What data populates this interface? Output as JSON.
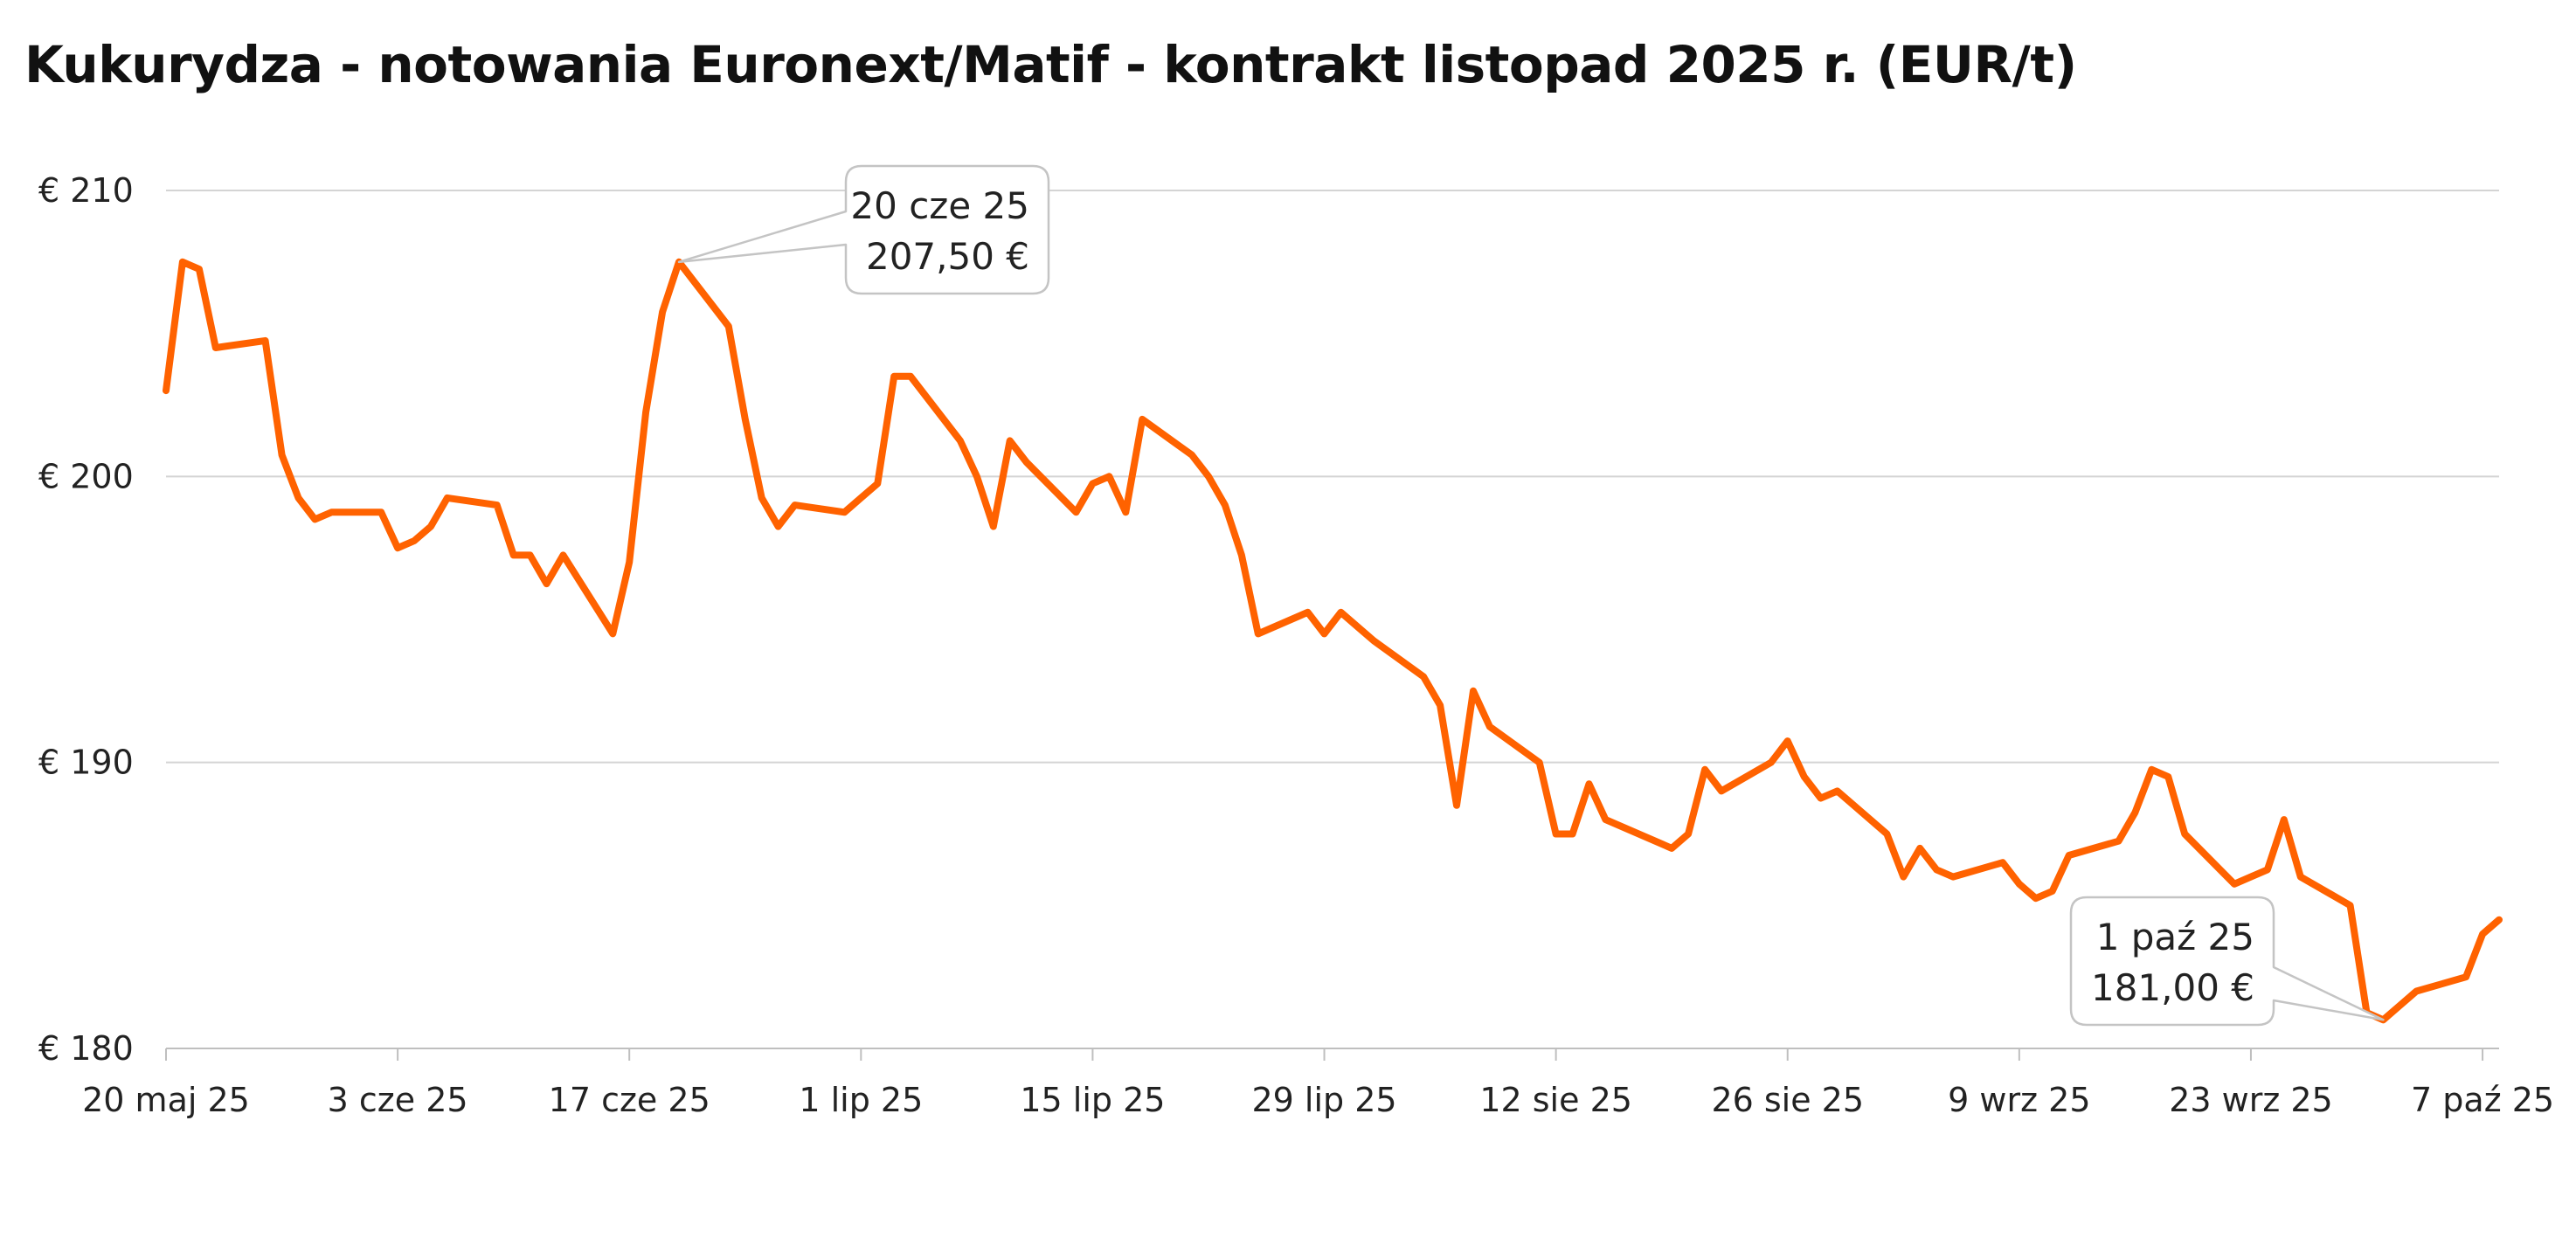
{
  "chart_data": {
    "type": "line",
    "title": "Kukurydza - notowania Euronext/Matif - kontrakt listopad 2025 r. (EUR/t)",
    "xlabel": "",
    "ylabel": "",
    "ylim": [
      180,
      210
    ],
    "yticks": [
      {
        "value": 210,
        "label": "€ 210"
      },
      {
        "value": 200,
        "label": "€ 200"
      },
      {
        "value": 190,
        "label": "€ 190"
      },
      {
        "value": 180,
        "label": "€ 180"
      }
    ],
    "xlim": [
      "2025-05-20",
      "2025-10-08"
    ],
    "xticks": [
      {
        "date": "2025-05-20",
        "label": "20 maj 25"
      },
      {
        "date": "2025-06-03",
        "label": "3 cze 25"
      },
      {
        "date": "2025-06-17",
        "label": "17 cze 25"
      },
      {
        "date": "2025-07-01",
        "label": "1 lip 25"
      },
      {
        "date": "2025-07-15",
        "label": "15 lip 25"
      },
      {
        "date": "2025-07-29",
        "label": "29 lip 25"
      },
      {
        "date": "2025-08-12",
        "label": "12 sie 25"
      },
      {
        "date": "2025-08-26",
        "label": "26 sie 25"
      },
      {
        "date": "2025-09-09",
        "label": "9 wrz 25"
      },
      {
        "date": "2025-09-23",
        "label": "23 wrz 25"
      },
      {
        "date": "2025-10-07",
        "label": "7 paź 25"
      }
    ],
    "grid": true,
    "color": "#FF6200",
    "series": [
      {
        "points": [
          [
            "2025-05-20",
            203.0
          ],
          [
            "2025-05-21",
            207.5
          ],
          [
            "2025-05-22",
            207.25
          ],
          [
            "2025-05-23",
            204.5
          ],
          [
            "2025-05-26",
            204.75
          ],
          [
            "2025-05-27",
            200.75
          ],
          [
            "2025-05-28",
            199.25
          ],
          [
            "2025-05-29",
            198.5
          ],
          [
            "2025-05-30",
            198.75
          ],
          [
            "2025-06-02",
            198.75
          ],
          [
            "2025-06-03",
            197.5
          ],
          [
            "2025-06-04",
            197.75
          ],
          [
            "2025-06-05",
            198.25
          ],
          [
            "2025-06-06",
            199.25
          ],
          [
            "2025-06-09",
            199.0
          ],
          [
            "2025-06-10",
            197.25
          ],
          [
            "2025-06-11",
            197.25
          ],
          [
            "2025-06-12",
            196.25
          ],
          [
            "2025-06-13",
            197.25
          ],
          [
            "2025-06-16",
            194.5
          ],
          [
            "2025-06-17",
            197.0
          ],
          [
            "2025-06-18",
            202.25
          ],
          [
            "2025-06-19",
            205.75
          ],
          [
            "2025-06-20",
            207.5
          ],
          [
            "2025-06-23",
            205.25
          ],
          [
            "2025-06-24",
            202.0
          ],
          [
            "2025-06-25",
            199.25
          ],
          [
            "2025-06-26",
            198.25
          ],
          [
            "2025-06-27",
            199.0
          ],
          [
            "2025-06-30",
            198.75
          ],
          [
            "2025-07-01",
            199.25
          ],
          [
            "2025-07-02",
            199.75
          ],
          [
            "2025-07-03",
            203.5
          ],
          [
            "2025-07-04",
            203.5
          ],
          [
            "2025-07-07",
            201.25
          ],
          [
            "2025-07-08",
            200.0
          ],
          [
            "2025-07-09",
            198.25
          ],
          [
            "2025-07-10",
            201.25
          ],
          [
            "2025-07-11",
            200.5
          ],
          [
            "2025-07-14",
            198.75
          ],
          [
            "2025-07-15",
            199.75
          ],
          [
            "2025-07-16",
            200.0
          ],
          [
            "2025-07-17",
            198.75
          ],
          [
            "2025-07-18",
            202.0
          ],
          [
            "2025-07-21",
            200.75
          ],
          [
            "2025-07-22",
            200.0
          ],
          [
            "2025-07-23",
            199.0
          ],
          [
            "2025-07-24",
            197.25
          ],
          [
            "2025-07-25",
            194.5
          ],
          [
            "2025-07-28",
            195.25
          ],
          [
            "2025-07-29",
            194.5
          ],
          [
            "2025-07-30",
            195.25
          ],
          [
            "2025-07-31",
            194.75
          ],
          [
            "2025-08-01",
            194.25
          ],
          [
            "2025-08-04",
            193.0
          ],
          [
            "2025-08-05",
            192.0
          ],
          [
            "2025-08-06",
            188.5
          ],
          [
            "2025-08-07",
            192.5
          ],
          [
            "2025-08-08",
            191.25
          ],
          [
            "2025-08-11",
            190.0
          ],
          [
            "2025-08-12",
            187.5
          ],
          [
            "2025-08-13",
            187.5
          ],
          [
            "2025-08-14",
            189.25
          ],
          [
            "2025-08-15",
            188.0
          ],
          [
            "2025-08-18",
            187.25
          ],
          [
            "2025-08-19",
            187.0
          ],
          [
            "2025-08-20",
            187.5
          ],
          [
            "2025-08-21",
            189.75
          ],
          [
            "2025-08-22",
            189.0
          ],
          [
            "2025-08-25",
            190.0
          ],
          [
            "2025-08-26",
            190.75
          ],
          [
            "2025-08-27",
            189.5
          ],
          [
            "2025-08-28",
            188.75
          ],
          [
            "2025-08-29",
            189.0
          ],
          [
            "2025-09-01",
            187.5
          ],
          [
            "2025-09-02",
            186.0
          ],
          [
            "2025-09-03",
            187.0
          ],
          [
            "2025-09-04",
            186.25
          ],
          [
            "2025-09-05",
            186.0
          ],
          [
            "2025-09-08",
            186.5
          ],
          [
            "2025-09-09",
            185.75
          ],
          [
            "2025-09-10",
            185.25
          ],
          [
            "2025-09-11",
            185.5
          ],
          [
            "2025-09-12",
            186.75
          ],
          [
            "2025-09-15",
            187.25
          ],
          [
            "2025-09-16",
            188.25
          ],
          [
            "2025-09-17",
            189.75
          ],
          [
            "2025-09-18",
            189.5
          ],
          [
            "2025-09-19",
            187.5
          ],
          [
            "2025-09-22",
            185.75
          ],
          [
            "2025-09-23",
            186.0
          ],
          [
            "2025-09-24",
            186.25
          ],
          [
            "2025-09-25",
            188.0
          ],
          [
            "2025-09-26",
            186.0
          ],
          [
            "2025-09-29",
            185.0
          ],
          [
            "2025-09-30",
            181.25
          ],
          [
            "2025-10-01",
            181.0
          ],
          [
            "2025-10-02",
            181.5
          ],
          [
            "2025-10-03",
            182.0
          ],
          [
            "2025-10-06",
            182.5
          ],
          [
            "2025-10-07",
            184.0
          ],
          [
            "2025-10-08",
            184.5
          ]
        ]
      }
    ],
    "annotations": [
      {
        "date": "2025-06-20",
        "value": 207.5,
        "line1": "20 cze 25",
        "line2": "207,50 €"
      },
      {
        "date": "2025-10-01",
        "value": 181.0,
        "line1": "1 paź 25",
        "line2": "181,00 €"
      }
    ]
  }
}
